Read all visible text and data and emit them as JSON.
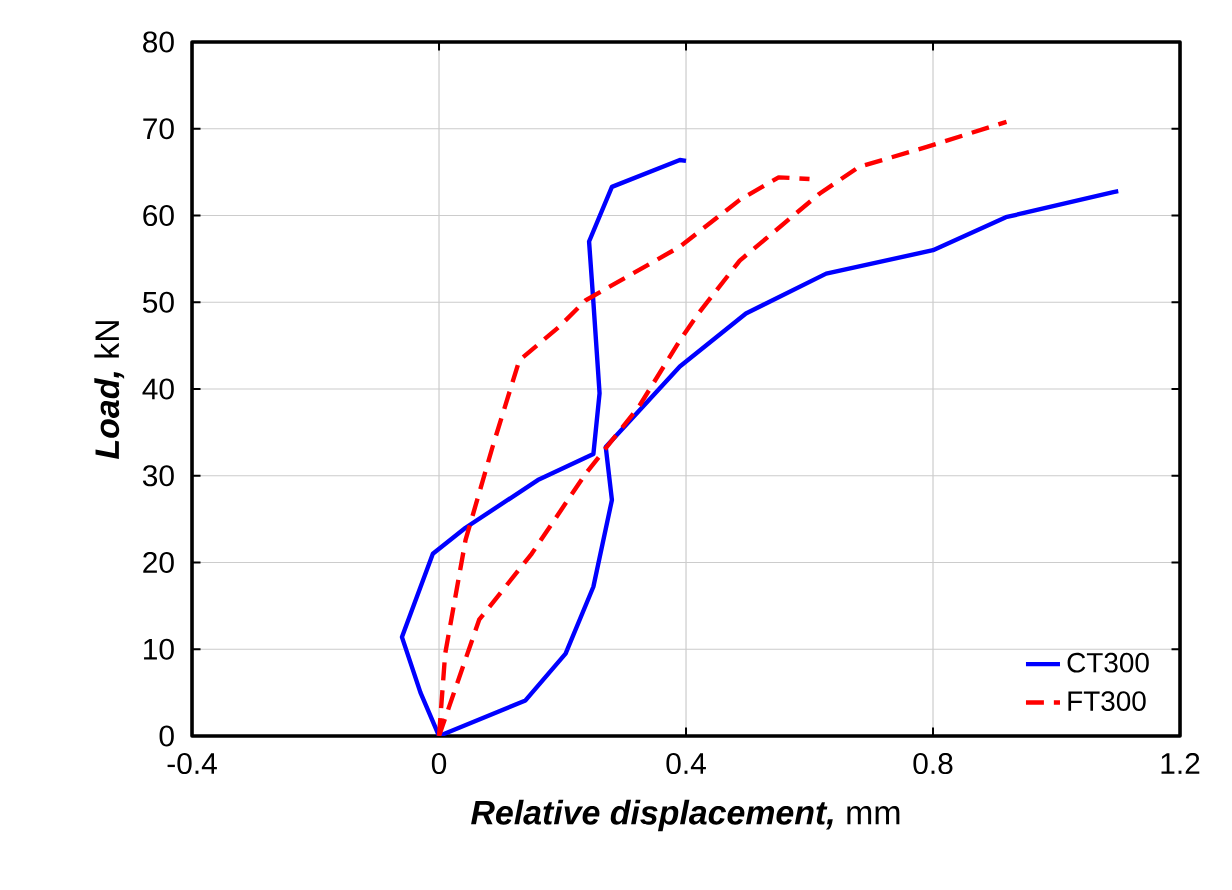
{
  "chart_data": {
    "type": "line",
    "xlabel": "**Relative displacement,** mm",
    "ylabel": "**Load,** kN",
    "xlim": [
      -0.4,
      1.2
    ],
    "ylim": [
      0,
      80
    ],
    "xticks": [
      -0.4,
      0,
      0.4,
      0.8,
      1.2
    ],
    "yticks": [
      0,
      10,
      20,
      30,
      40,
      50,
      60,
      70,
      80
    ],
    "grid": true,
    "legend": "bottom right",
    "marker": "none",
    "series": [
      {
        "name": "CT300",
        "color": "#0000ff",
        "line_style": "solid",
        "x": [
          0,
          -0.03,
          -0.06,
          -0.01,
          0.043,
          0.16,
          0.25,
          0.26,
          0.25,
          0.243,
          0.28,
          0.39,
          0.4,
          null,
          0,
          0.14,
          0.205,
          0.25,
          0.28,
          0.27,
          0.39,
          0.497,
          0.627,
          0.8,
          0.918,
          1.092,
          1.1
        ],
        "values": [
          0,
          5,
          11.4,
          21,
          24,
          29.5,
          32.5,
          39.5,
          50,
          57,
          63.3,
          66.4,
          66.3,
          null,
          0,
          4.1,
          9.5,
          17.2,
          27.2,
          33.3,
          42.6,
          48.7,
          53.3,
          56,
          59.8,
          62.7,
          62.8
        ]
      },
      {
        "name": "FT300",
        "color": "#ff0000",
        "line_style": "dashed",
        "x": [
          0,
          0.01,
          0.043,
          0.087,
          0.13,
          0.195,
          0.237,
          0.39,
          0.487,
          0.55,
          0.6,
          null,
          0,
          0.065,
          0.15,
          0.237,
          0.324,
          0.39,
          0.42,
          0.487,
          0.616,
          0.68,
          0.79,
          0.919
        ],
        "values": [
          0,
          9.5,
          22.6,
          33.4,
          43.3,
          47.2,
          50.2,
          56.4,
          61.8,
          64.4,
          64.2,
          null,
          0,
          13.4,
          21,
          30.2,
          38,
          45.6,
          48.7,
          54.8,
          62.5,
          65.6,
          67.9,
          70.8
        ]
      }
    ]
  }
}
